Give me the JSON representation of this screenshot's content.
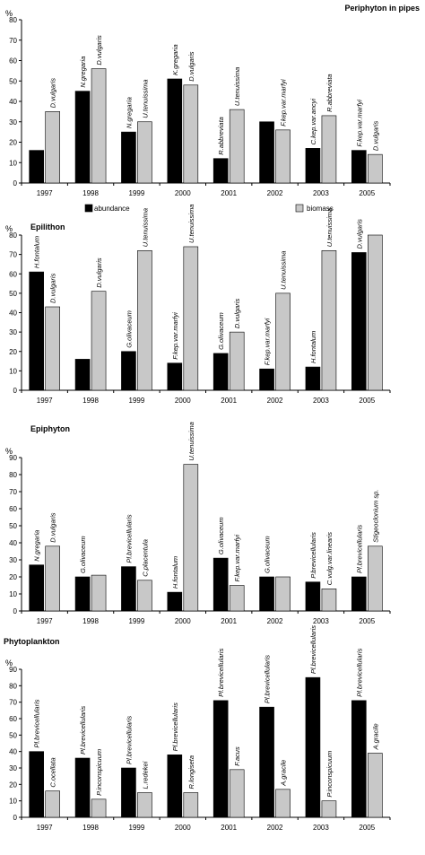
{
  "colors": {
    "abundance": "#000000",
    "biomass": "#c8c8c8",
    "axis": "#000000"
  },
  "legend": {
    "abundance_label": "abundance",
    "biomass_label": "biomass"
  },
  "chart_data": [
    {
      "type": "bar",
      "title": "Periphyton in pipes",
      "ylabel": "%",
      "ylim": [
        0,
        80
      ],
      "yticks": [
        0,
        10,
        20,
        30,
        40,
        50,
        60,
        70,
        80
      ],
      "categories": [
        "1997",
        "1998",
        "1999",
        "2000",
        "2001",
        "2002",
        "2003",
        "2005"
      ],
      "legend_position": "bottom",
      "series": [
        {
          "name": "abundance",
          "values": [
            16,
            45,
            25,
            51,
            12,
            30,
            17,
            16
          ],
          "labels": [
            "",
            "N.gregaria",
            "N.gregaria",
            "K.gregaria",
            "R.abbreviata",
            "",
            "C.kep.var.ancyi",
            "F.kep.var.marfyi"
          ]
        },
        {
          "name": "biomass",
          "values": [
            35,
            56,
            30,
            48,
            36,
            26,
            33,
            14
          ],
          "labels": [
            "D.vulgaris",
            "D.vulgaris",
            "U.tenuissima",
            "D.vulgaris",
            "U.tenuissima",
            "F.kep.var.marfyi",
            "R.abbreviata",
            "D.vulgaris"
          ]
        }
      ]
    },
    {
      "type": "bar",
      "title": "Epilithon",
      "ylabel": "%",
      "ylim": [
        0,
        80
      ],
      "yticks": [
        0,
        10,
        20,
        30,
        40,
        50,
        60,
        70,
        80
      ],
      "categories": [
        "1997",
        "1998",
        "1999",
        "2000",
        "2001",
        "2002",
        "2003",
        "2005"
      ],
      "series": [
        {
          "name": "abundance",
          "values": [
            61,
            16,
            20,
            14,
            19,
            11,
            12,
            71
          ],
          "labels": [
            "H.fontalum",
            "",
            "G.olivaceum",
            "F.kep.var.marfyi",
            "G.olivaceum",
            "F.kep.var.marfyi",
            "H.fontalum",
            "D.vulgaris"
          ]
        },
        {
          "name": "biomass",
          "values": [
            43,
            51,
            72,
            74,
            30,
            50,
            72,
            81
          ],
          "labels": [
            "D.vulgaris",
            "D.vulgaris",
            "U.tenuissima",
            "U.tenuissima",
            "D.vulgaris",
            "U.tenuissima",
            "U.tenuissima",
            ""
          ]
        }
      ]
    },
    {
      "type": "bar",
      "title": "Epiphyton",
      "ylabel": "%",
      "ylim": [
        0,
        90
      ],
      "yticks": [
        0,
        10,
        20,
        30,
        40,
        50,
        60,
        70,
        80,
        90
      ],
      "categories": [
        "1997",
        "1998",
        "1999",
        "2000",
        "2001",
        "2002",
        "2003",
        "2005"
      ],
      "series": [
        {
          "name": "abundance",
          "values": [
            27,
            20,
            26,
            11,
            31,
            20,
            17,
            20
          ],
          "labels": [
            "N.gregaria",
            "G.olivaceum",
            "Pl.brevicellularis",
            "H.fontalum",
            "G.olivaceum",
            "G.olivaceum",
            "P.brevicellularis",
            "Pl.brevicellularis"
          ]
        },
        {
          "name": "biomass",
          "values": [
            38,
            21,
            18,
            86,
            15,
            20,
            13,
            38
          ],
          "labels": [
            "D.vulgaris",
            "",
            "C.placentula",
            "U.tenuissima",
            "F.kep.var.marfyi",
            "",
            "C.vulg.var.linearis",
            "Stigeoclonium sp."
          ]
        }
      ]
    },
    {
      "type": "bar",
      "title": "Phytoplankton",
      "ylabel": "%",
      "ylim": [
        0,
        90
      ],
      "yticks": [
        0,
        10,
        20,
        30,
        40,
        50,
        60,
        70,
        80,
        90
      ],
      "categories": [
        "1997",
        "1998",
        "1999",
        "2000",
        "2001",
        "2002",
        "2003",
        "2005"
      ],
      "series": [
        {
          "name": "abundance",
          "values": [
            40,
            36,
            30,
            38,
            71,
            67,
            85,
            71
          ],
          "labels": [
            "Pl.brevicellularis",
            "Pl.brevicellularis",
            "Pl.brevicellularis",
            "Pl.brevicellularis",
            "Pl.brevicellularis",
            "Pl.brevicellularis",
            "Pl.brevicellularis",
            "Pl.brevicellularis"
          ]
        },
        {
          "name": "biomass",
          "values": [
            16,
            11,
            15,
            15,
            29,
            17,
            10,
            39
          ],
          "labels": [
            "C.ocellata",
            "P.inconspicuum",
            "L.redekei",
            "R.longiseta",
            "F.acus",
            "A.gracile",
            "P.inconspicuum",
            "A.gracile"
          ]
        }
      ]
    }
  ]
}
